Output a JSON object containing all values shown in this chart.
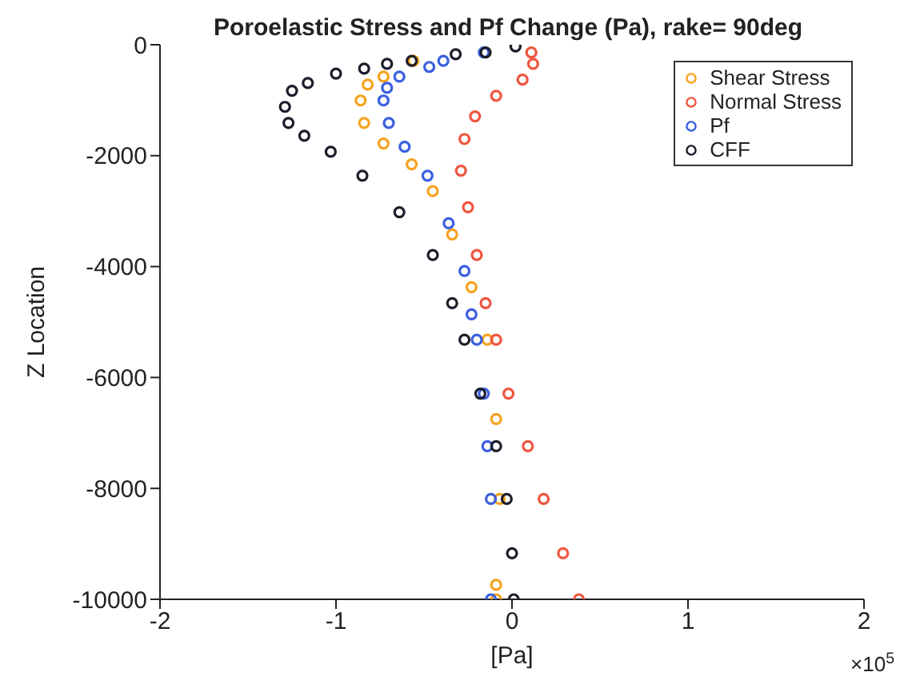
{
  "chart_data": {
    "type": "scatter",
    "title": "Poroelastic Stress and Pf Change (Pa), rake= 90deg",
    "xlabel": "[Pa]",
    "ylabel": "Z Location",
    "annotations": [
      "×10$^{5}$"
    ],
    "xlim": [
      -2,
      2
    ],
    "xticks": [
      -2,
      -1,
      0,
      1,
      2
    ],
    "ylim": [
      -10000,
      0
    ],
    "yticks": [
      -10000,
      -8000,
      -6000,
      -4000,
      -2000,
      0
    ],
    "grid": false,
    "legend": "top right",
    "marker": "circle",
    "series": [
      {
        "name": "Shear Stress",
        "color": "#f5a31f",
        "x": [
          -0.56,
          -0.73,
          -0.82,
          -0.86,
          -0.84,
          -0.73,
          -0.57,
          -0.45,
          -0.34,
          -0.23,
          -0.14,
          -0.09,
          -0.07,
          -0.09,
          -0.09
        ],
        "values": [
          -290,
          -575,
          -720,
          -1005,
          -1410,
          -1780,
          -2155,
          -2640,
          -3420,
          -4370,
          -5320,
          -6750,
          -8190,
          -9740,
          -10000
        ]
      },
      {
        "name": "Normal Stress",
        "color": "#f0553f",
        "x": [
          0.11,
          0.12,
          0.06,
          -0.09,
          -0.21,
          -0.27,
          -0.29,
          -0.25,
          -0.2,
          -0.15,
          -0.09,
          -0.02,
          0.09,
          0.18,
          0.29,
          0.38
        ],
        "values": [
          -140,
          -345,
          -630,
          -920,
          -1290,
          -1700,
          -2270,
          -2930,
          -3790,
          -4660,
          -5320,
          -6290,
          -7240,
          -8190,
          -9170,
          -10000
        ]
      },
      {
        "name": "Pf",
        "color": "#3a5fe0",
        "x": [
          -0.16,
          -0.39,
          -0.47,
          -0.64,
          -0.71,
          -0.73,
          -0.7,
          -0.61,
          -0.48,
          -0.36,
          -0.27,
          -0.23,
          -0.2,
          -0.16,
          -0.14,
          -0.12,
          -0.12
        ],
        "values": [
          -140,
          -290,
          -400,
          -575,
          -775,
          -1005,
          -1410,
          -1840,
          -2360,
          -3220,
          -4080,
          -4860,
          -5320,
          -6290,
          -7240,
          -8190,
          -10000
        ]
      },
      {
        "name": "CFF",
        "color": "#1c1c2a",
        "x": [
          0.02,
          -0.15,
          -0.32,
          -0.57,
          -0.71,
          -0.84,
          -1.0,
          -1.16,
          -1.25,
          -1.29,
          -1.27,
          -1.18,
          -1.03,
          -0.85,
          -0.64,
          -0.45,
          -0.34,
          -0.27,
          -0.18,
          -0.09,
          -0.03,
          0.0,
          0.01
        ],
        "values": [
          -30,
          -140,
          -170,
          -290,
          -345,
          -430,
          -520,
          -690,
          -830,
          -1120,
          -1410,
          -1640,
          -1930,
          -2360,
          -3020,
          -3790,
          -4660,
          -5320,
          -6290,
          -7240,
          -8190,
          -9170,
          -10000
        ]
      }
    ]
  }
}
